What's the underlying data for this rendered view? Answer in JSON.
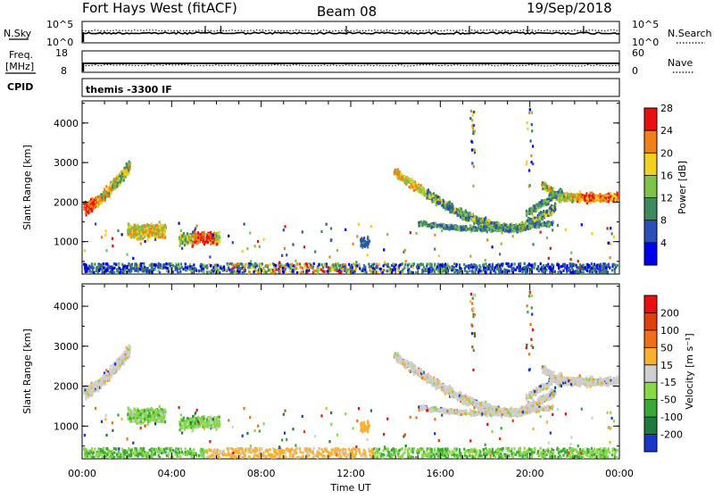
{
  "header": {
    "title": "Fort Hays West (fitACF)",
    "beam": "Beam 08",
    "date": "19/Sep/2018"
  },
  "chart_data": [
    {
      "type": "line",
      "panel": "noise",
      "left_label": "N.Sky",
      "right_label": "N.Search",
      "left_ticks": [
        "10^5",
        "10^0"
      ],
      "right_ticks": [
        "10^5",
        "10^0"
      ]
    },
    {
      "type": "line",
      "panel": "frequency-nave",
      "left_label_line1": "Freq.",
      "left_label_line2": "[MHz]",
      "right_label": "Nave",
      "left_ticks": [
        "18",
        "8"
      ],
      "right_ticks": [
        "60",
        "0"
      ],
      "freq_mhz": 10.5
    },
    {
      "type": "label",
      "panel": "cpid",
      "label": "CPID",
      "text": "themis -3300 IF"
    },
    {
      "type": "heatmap",
      "panel": "power",
      "ylabel": "Slant Range [km]",
      "ylim": [
        180,
        4560
      ],
      "y_ticks": [
        "1000",
        "2000",
        "3000",
        "4000"
      ],
      "colorbar_label": "Power [dB]",
      "colorbar_ticks": [
        "4",
        "8",
        "12",
        "16",
        "20",
        "24",
        "28"
      ],
      "colorbar_range": [
        0,
        32
      ],
      "colors": [
        "#0000ee",
        "#2b4fb8",
        "#3c8a5e",
        "#7fc24a",
        "#f0d020",
        "#f08018",
        "#e81010"
      ]
    },
    {
      "type": "heatmap",
      "panel": "velocity",
      "ylabel": "Slant Range [km]",
      "ylim": [
        180,
        4560
      ],
      "y_ticks": [
        "1000",
        "2000",
        "3000",
        "4000"
      ],
      "colorbar_label": "Velocity [m s⁻¹]",
      "colorbar_ticks": [
        "200",
        "100",
        "50",
        "15",
        "-15",
        "-50",
        "-100",
        "-200"
      ],
      "colors": [
        "#1838c8",
        "#1e7a3e",
        "#38a838",
        "#88d848",
        "#cfcfcf",
        "#f8b030",
        "#f07018",
        "#e04010",
        "#e81010"
      ]
    }
  ],
  "xaxis": {
    "label": "Time UT",
    "ticks": [
      "00:00",
      "04:00",
      "08:00",
      "12:00",
      "16:00",
      "20:00",
      "00:00"
    ],
    "range_hours": [
      0,
      24
    ]
  }
}
